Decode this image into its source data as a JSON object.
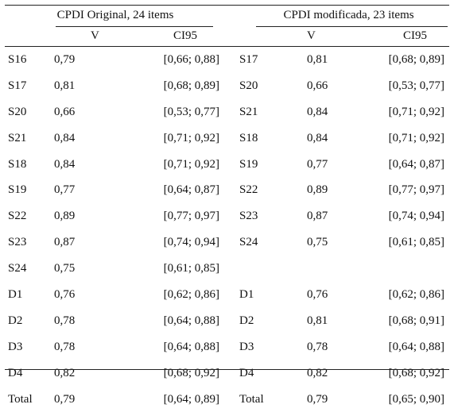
{
  "groups": {
    "original": "CPDI Original, 24 items",
    "modified": "CPDI modificada, 23 items"
  },
  "columns": {
    "v": "V",
    "ci": "CI95"
  },
  "rows": [
    {
      "id1": "S16",
      "v1": "0,79",
      "ci1": "[0,66; 0,88]",
      "id2": "S17",
      "v2": "0,81",
      "ci2": "[0,68; 0,89]"
    },
    {
      "id1": "S17",
      "v1": "0,81",
      "ci1": "[0,68; 0,89]",
      "id2": "S20",
      "v2": "0,66",
      "ci2": "[0,53; 0,77]"
    },
    {
      "id1": "S20",
      "v1": "0,66",
      "ci1": "[0,53; 0,77]",
      "id2": "S21",
      "v2": "0,84",
      "ci2": "[0,71; 0,92]"
    },
    {
      "id1": "S21",
      "v1": "0,84",
      "ci1": "[0,71; 0,92]",
      "id2": "S18",
      "v2": "0,84",
      "ci2": "[0,71; 0,92]"
    },
    {
      "id1": "S18",
      "v1": "0,84",
      "ci1": "[0,71; 0,92]",
      "id2": "S19",
      "v2": "0,77",
      "ci2": "[0,64; 0,87]"
    },
    {
      "id1": "S19",
      "v1": "0,77",
      "ci1": "[0,64; 0,87]",
      "id2": "S22",
      "v2": "0,89",
      "ci2": "[0,77; 0,97]"
    },
    {
      "id1": "S22",
      "v1": "0,89",
      "ci1": "[0,77; 0,97]",
      "id2": "S23",
      "v2": "0,87",
      "ci2": "[0,74; 0,94]"
    },
    {
      "id1": "S23",
      "v1": "0,87",
      "ci1": "[0,74; 0,94]",
      "id2": "S24",
      "v2": "0,75",
      "ci2": "[0,61; 0,85]"
    },
    {
      "id1": "S24",
      "v1": "0,75",
      "ci1": "[0,61; 0,85]",
      "id2": "",
      "v2": "",
      "ci2": ""
    },
    {
      "id1": "D1",
      "v1": "0,76",
      "ci1": "[0,62; 0,86]",
      "id2": "D1",
      "v2": "0,76",
      "ci2": "[0,62; 0,86]"
    },
    {
      "id1": "D2",
      "v1": "0,78",
      "ci1": "[0,64; 0,88]",
      "id2": "D2",
      "v2": "0,81",
      "ci2": "[0,68; 0,91]"
    },
    {
      "id1": "D3",
      "v1": "0,78",
      "ci1": "[0,64; 0,88]",
      "id2": "D3",
      "v2": "0,78",
      "ci2": "[0,64; 0,88]"
    },
    {
      "id1": "D4",
      "v1": "0,82",
      "ci1": "[0,68; 0,92]",
      "id2": "D4",
      "v2": "0,82",
      "ci2": "[0,68; 0,92]"
    },
    {
      "id1": "Total",
      "v1": "0,79",
      "ci1": "[0,64; 0,89]",
      "id2": "Total",
      "v2": "0,79",
      "ci2": "[0,65; 0,90]"
    }
  ]
}
